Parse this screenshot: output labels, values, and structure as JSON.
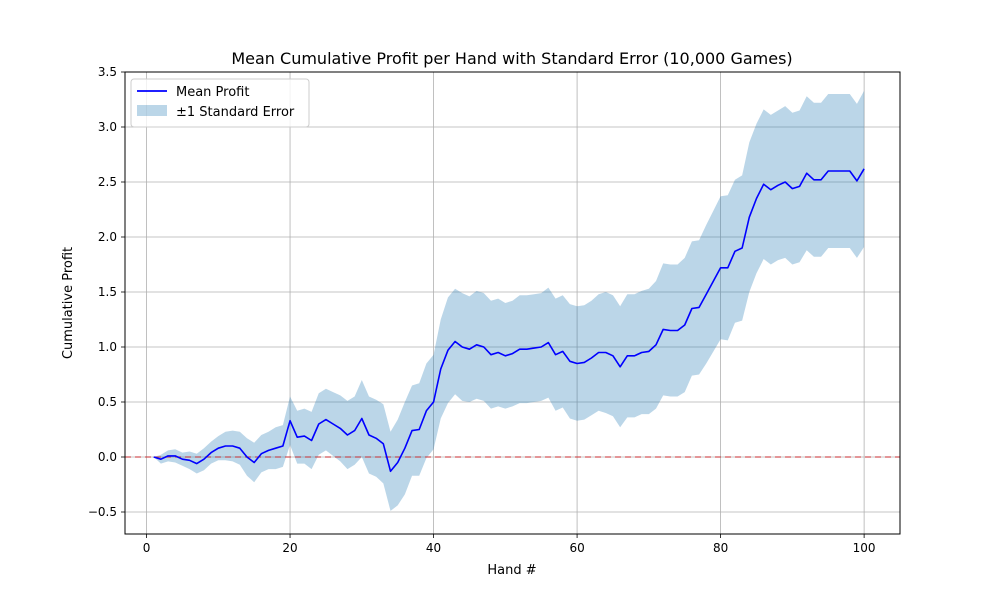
{
  "chart_data": {
    "type": "line",
    "title": "Mean Cumulative Profit per Hand with Standard Error (10,000 Games)",
    "xlabel": "Hand #",
    "ylabel": "Cumulative Profit",
    "xlim": [
      -3,
      105
    ],
    "ylim": [
      -0.7,
      3.5
    ],
    "xticks": [
      0,
      20,
      40,
      60,
      80,
      100
    ],
    "yticks": [
      -0.5,
      0.0,
      0.5,
      1.0,
      1.5,
      2.0,
      2.5,
      3.0,
      3.5
    ],
    "ytick_labels": [
      "−0.5",
      "0.0",
      "0.5",
      "1.0",
      "1.5",
      "2.0",
      "2.5",
      "3.0",
      "3.5"
    ],
    "grid": true,
    "legend_position": "upper-left",
    "reference_line": {
      "y": 0.0,
      "style": "dashed",
      "color": "#d62728"
    },
    "colors": {
      "line": "#0000ff",
      "band": "#1f77b4",
      "band_opacity": 0.3
    },
    "series": [
      {
        "name": "Mean Profit",
        "x": [
          1,
          2,
          3,
          4,
          5,
          6,
          7,
          8,
          9,
          10,
          11,
          12,
          13,
          14,
          15,
          16,
          17,
          18,
          19,
          20,
          21,
          22,
          23,
          24,
          25,
          26,
          27,
          28,
          29,
          30,
          31,
          32,
          33,
          34,
          35,
          36,
          37,
          38,
          39,
          40,
          41,
          42,
          43,
          44,
          45,
          46,
          47,
          48,
          49,
          50,
          51,
          52,
          53,
          54,
          55,
          56,
          57,
          58,
          59,
          60,
          61,
          62,
          63,
          64,
          65,
          66,
          67,
          68,
          69,
          70,
          71,
          72,
          73,
          74,
          75,
          76,
          77,
          78,
          79,
          80,
          81,
          82,
          83,
          84,
          85,
          86,
          87,
          88,
          89,
          90,
          91,
          92,
          93,
          94,
          95,
          96,
          97,
          98,
          99,
          100
        ],
        "y": [
          0.0,
          -0.02,
          0.01,
          0.01,
          -0.02,
          -0.03,
          -0.06,
          -0.02,
          0.04,
          0.08,
          0.1,
          0.1,
          0.08,
          0.0,
          -0.05,
          0.03,
          0.06,
          0.08,
          0.1,
          0.33,
          0.18,
          0.19,
          0.15,
          0.3,
          0.34,
          0.3,
          0.26,
          0.2,
          0.24,
          0.35,
          0.2,
          0.17,
          0.12,
          -0.13,
          -0.05,
          0.08,
          0.24,
          0.25,
          0.42,
          0.5,
          0.8,
          0.97,
          1.05,
          1.0,
          0.98,
          1.02,
          1.0,
          0.93,
          0.95,
          0.92,
          0.94,
          0.98,
          0.98,
          0.99,
          1.0,
          1.04,
          0.93,
          0.96,
          0.87,
          0.85,
          0.86,
          0.9,
          0.95,
          0.95,
          0.92,
          0.82,
          0.92,
          0.92,
          0.95,
          0.96,
          1.02,
          1.16,
          1.15,
          1.15,
          1.2,
          1.35,
          1.36,
          1.48,
          1.6,
          1.72,
          1.72,
          1.87,
          1.9,
          2.18,
          2.35,
          2.48,
          2.43,
          2.47,
          2.5,
          2.44,
          2.46,
          2.58,
          2.52,
          2.52,
          2.6,
          2.6,
          2.6,
          2.6,
          2.51,
          2.62
        ]
      },
      {
        "name": "±1 Standard Error",
        "x": [
          1,
          2,
          3,
          4,
          5,
          6,
          7,
          8,
          9,
          10,
          11,
          12,
          13,
          14,
          15,
          16,
          17,
          18,
          19,
          20,
          21,
          22,
          23,
          24,
          25,
          26,
          27,
          28,
          29,
          30,
          31,
          32,
          33,
          34,
          35,
          36,
          37,
          38,
          39,
          40,
          41,
          42,
          43,
          44,
          45,
          46,
          47,
          48,
          49,
          50,
          51,
          52,
          53,
          54,
          55,
          56,
          57,
          58,
          59,
          60,
          61,
          62,
          63,
          64,
          65,
          66,
          67,
          68,
          69,
          70,
          71,
          72,
          73,
          74,
          75,
          76,
          77,
          78,
          79,
          80,
          81,
          82,
          83,
          84,
          85,
          86,
          87,
          88,
          89,
          90,
          91,
          92,
          93,
          94,
          95,
          96,
          97,
          98,
          99,
          100
        ],
        "upper": [
          0.0,
          0.02,
          0.06,
          0.07,
          0.04,
          0.05,
          0.03,
          0.08,
          0.14,
          0.19,
          0.23,
          0.24,
          0.23,
          0.17,
          0.13,
          0.2,
          0.23,
          0.27,
          0.29,
          0.55,
          0.42,
          0.44,
          0.41,
          0.58,
          0.62,
          0.59,
          0.56,
          0.51,
          0.55,
          0.7,
          0.55,
          0.52,
          0.48,
          0.23,
          0.34,
          0.5,
          0.65,
          0.67,
          0.85,
          0.93,
          1.25,
          1.45,
          1.53,
          1.49,
          1.46,
          1.51,
          1.49,
          1.42,
          1.44,
          1.4,
          1.42,
          1.47,
          1.47,
          1.48,
          1.49,
          1.54,
          1.44,
          1.47,
          1.39,
          1.37,
          1.38,
          1.42,
          1.48,
          1.5,
          1.47,
          1.37,
          1.48,
          1.48,
          1.51,
          1.53,
          1.6,
          1.76,
          1.75,
          1.75,
          1.81,
          1.96,
          1.97,
          2.11,
          2.24,
          2.37,
          2.38,
          2.52,
          2.56,
          2.86,
          3.03,
          3.16,
          3.11,
          3.15,
          3.19,
          3.13,
          3.15,
          3.28,
          3.22,
          3.22,
          3.3,
          3.3,
          3.3,
          3.3,
          3.21,
          3.33
        ],
        "lower": [
          0.0,
          -0.06,
          -0.04,
          -0.05,
          -0.08,
          -0.11,
          -0.15,
          -0.12,
          -0.06,
          -0.03,
          -0.03,
          -0.04,
          -0.07,
          -0.17,
          -0.23,
          -0.14,
          -0.11,
          -0.11,
          -0.09,
          0.11,
          -0.06,
          -0.06,
          -0.11,
          0.02,
          0.06,
          0.01,
          -0.04,
          -0.11,
          -0.07,
          0.0,
          -0.15,
          -0.18,
          -0.24,
          -0.49,
          -0.44,
          -0.34,
          -0.17,
          -0.17,
          -0.01,
          0.07,
          0.35,
          0.49,
          0.57,
          0.51,
          0.5,
          0.53,
          0.51,
          0.44,
          0.46,
          0.44,
          0.46,
          0.49,
          0.49,
          0.5,
          0.51,
          0.54,
          0.42,
          0.45,
          0.35,
          0.33,
          0.34,
          0.38,
          0.42,
          0.4,
          0.37,
          0.27,
          0.36,
          0.36,
          0.39,
          0.39,
          0.44,
          0.56,
          0.55,
          0.55,
          0.59,
          0.74,
          0.75,
          0.85,
          0.96,
          1.07,
          1.06,
          1.22,
          1.24,
          1.5,
          1.67,
          1.8,
          1.75,
          1.79,
          1.81,
          1.75,
          1.77,
          1.88,
          1.82,
          1.82,
          1.9,
          1.9,
          1.9,
          1.9,
          1.81,
          1.91
        ]
      }
    ]
  }
}
